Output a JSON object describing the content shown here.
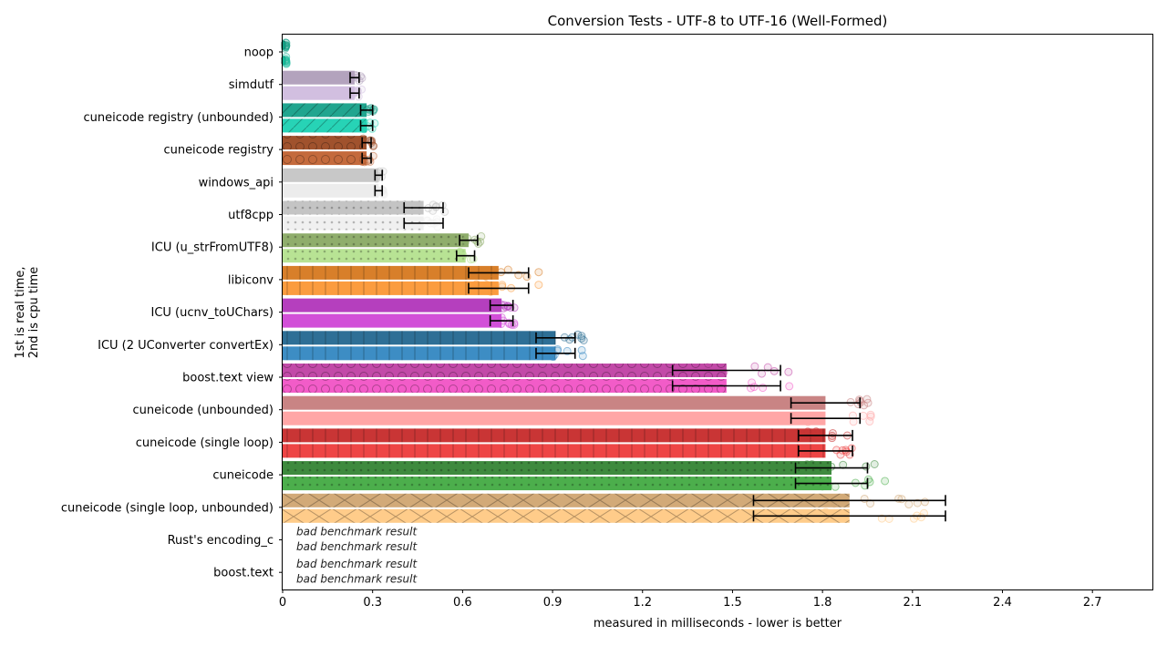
{
  "chart_data": {
    "type": "bar",
    "orientation": "horizontal",
    "title": "Conversion Tests - UTF-8 to UTF-16 (Well-Formed)",
    "xlabel": "measured in milliseconds - lower is better",
    "ylabel_lines": [
      "1st is real time,",
      "2nd is cpu time"
    ],
    "xlim": [
      0,
      2.9
    ],
    "xticks": [
      0,
      0.3,
      0.6,
      0.9,
      1.2,
      1.5,
      1.8,
      2.1,
      2.4,
      2.7
    ],
    "xtick_labels": [
      "0",
      "0.3",
      "0.6",
      "0.9",
      "1.2",
      "1.5",
      "1.8",
      "2.1",
      "2.4",
      "2.7"
    ],
    "grid": false,
    "series_meaning": [
      "real time",
      "cpu time"
    ],
    "categories": [
      {
        "label": "noop",
        "real": 0.01,
        "cpu": 0.01,
        "err": 0,
        "colors": [
          "#16a085",
          "#1abc9c"
        ],
        "hatch": "none",
        "spread": 0.003
      },
      {
        "label": "simdutf",
        "real": 0.24,
        "cpu": 0.24,
        "err": 0.015,
        "colors": [
          "#b3a3bd",
          "#d2bfe0"
        ],
        "hatch": "none",
        "spread": 0.03
      },
      {
        "label": "cuneicode registry (unbounded)",
        "real": 0.28,
        "cpu": 0.28,
        "err": 0.02,
        "colors": [
          "#21a58f",
          "#27d3b6"
        ],
        "hatch": "diag",
        "spread": 0.03
      },
      {
        "label": "cuneicode registry",
        "real": 0.28,
        "cpu": 0.28,
        "err": 0.015,
        "colors": [
          "#a0522d",
          "#c46a3c"
        ],
        "hatch": "circle",
        "spread": 0.03
      },
      {
        "label": "windows_api",
        "real": 0.32,
        "cpu": 0.32,
        "err": 0.012,
        "colors": [
          "#c8c8c8",
          "#ececec"
        ],
        "hatch": "none",
        "spread": 0.02
      },
      {
        "label": "utf8cpp",
        "real": 0.47,
        "cpu": 0.47,
        "err": 0.065,
        "colors": [
          "#c4c4c4",
          "#f0f0f0"
        ],
        "hatch": "dots",
        "spread": 0.08
      },
      {
        "label": "ICU (u_strFromUTF8)",
        "real": 0.62,
        "cpu": 0.61,
        "err": 0.03,
        "colors": [
          "#8fad6c",
          "#b8e394"
        ],
        "hatch": "dots",
        "spread": 0.05
      },
      {
        "label": "libiconv",
        "real": 0.72,
        "cpu": 0.72,
        "err": 0.1,
        "colors": [
          "#d87f2a",
          "#fb9c3f"
        ],
        "hatch": "grid",
        "spread": 0.15
      },
      {
        "label": "ICU (ucnv_toUChars)",
        "real": 0.73,
        "cpu": 0.73,
        "err": 0.038,
        "colors": [
          "#b53fbe",
          "#d24fd8"
        ],
        "hatch": "none",
        "spread": 0.05
      },
      {
        "label": "ICU (2 UConverter convertEx)",
        "real": 0.91,
        "cpu": 0.91,
        "err": 0.065,
        "colors": [
          "#2e6f96",
          "#3d8dc4"
        ],
        "hatch": "grid",
        "spread": 0.12
      },
      {
        "label": "boost.text view",
        "real": 1.48,
        "cpu": 1.48,
        "err": 0.18,
        "colors": [
          "#c24aa8",
          "#f25cc8"
        ],
        "hatch": "circle",
        "spread": 0.25
      },
      {
        "label": "cuneicode (unbounded)",
        "real": 1.81,
        "cpu": 1.81,
        "err": 0.115,
        "colors": [
          "#c98484",
          "#ffa6a6"
        ],
        "hatch": "none",
        "spread": 0.18
      },
      {
        "label": "cuneicode (single loop)",
        "real": 1.81,
        "cpu": 1.81,
        "err": 0.09,
        "colors": [
          "#c93535",
          "#ee4545"
        ],
        "hatch": "grid",
        "spread": 0.14
      },
      {
        "label": "cuneicode",
        "real": 1.83,
        "cpu": 1.83,
        "err": 0.12,
        "colors": [
          "#3e8a3e",
          "#4cae4c"
        ],
        "hatch": "dots",
        "spread": 0.2
      },
      {
        "label": "cuneicode (single loop, unbounded)",
        "real": 1.89,
        "cpu": 1.89,
        "err": 0.32,
        "colors": [
          "#d2aa78",
          "#ffcc8a"
        ],
        "hatch": "cross",
        "spread": 0.35
      },
      {
        "label": "Rust's encoding_c",
        "bad": true,
        "bad_text": [
          "bad benchmark result",
          "bad benchmark result"
        ]
      },
      {
        "label": "boost.text",
        "bad": true,
        "bad_text": [
          "bad benchmark result",
          "bad benchmark result"
        ]
      }
    ]
  }
}
